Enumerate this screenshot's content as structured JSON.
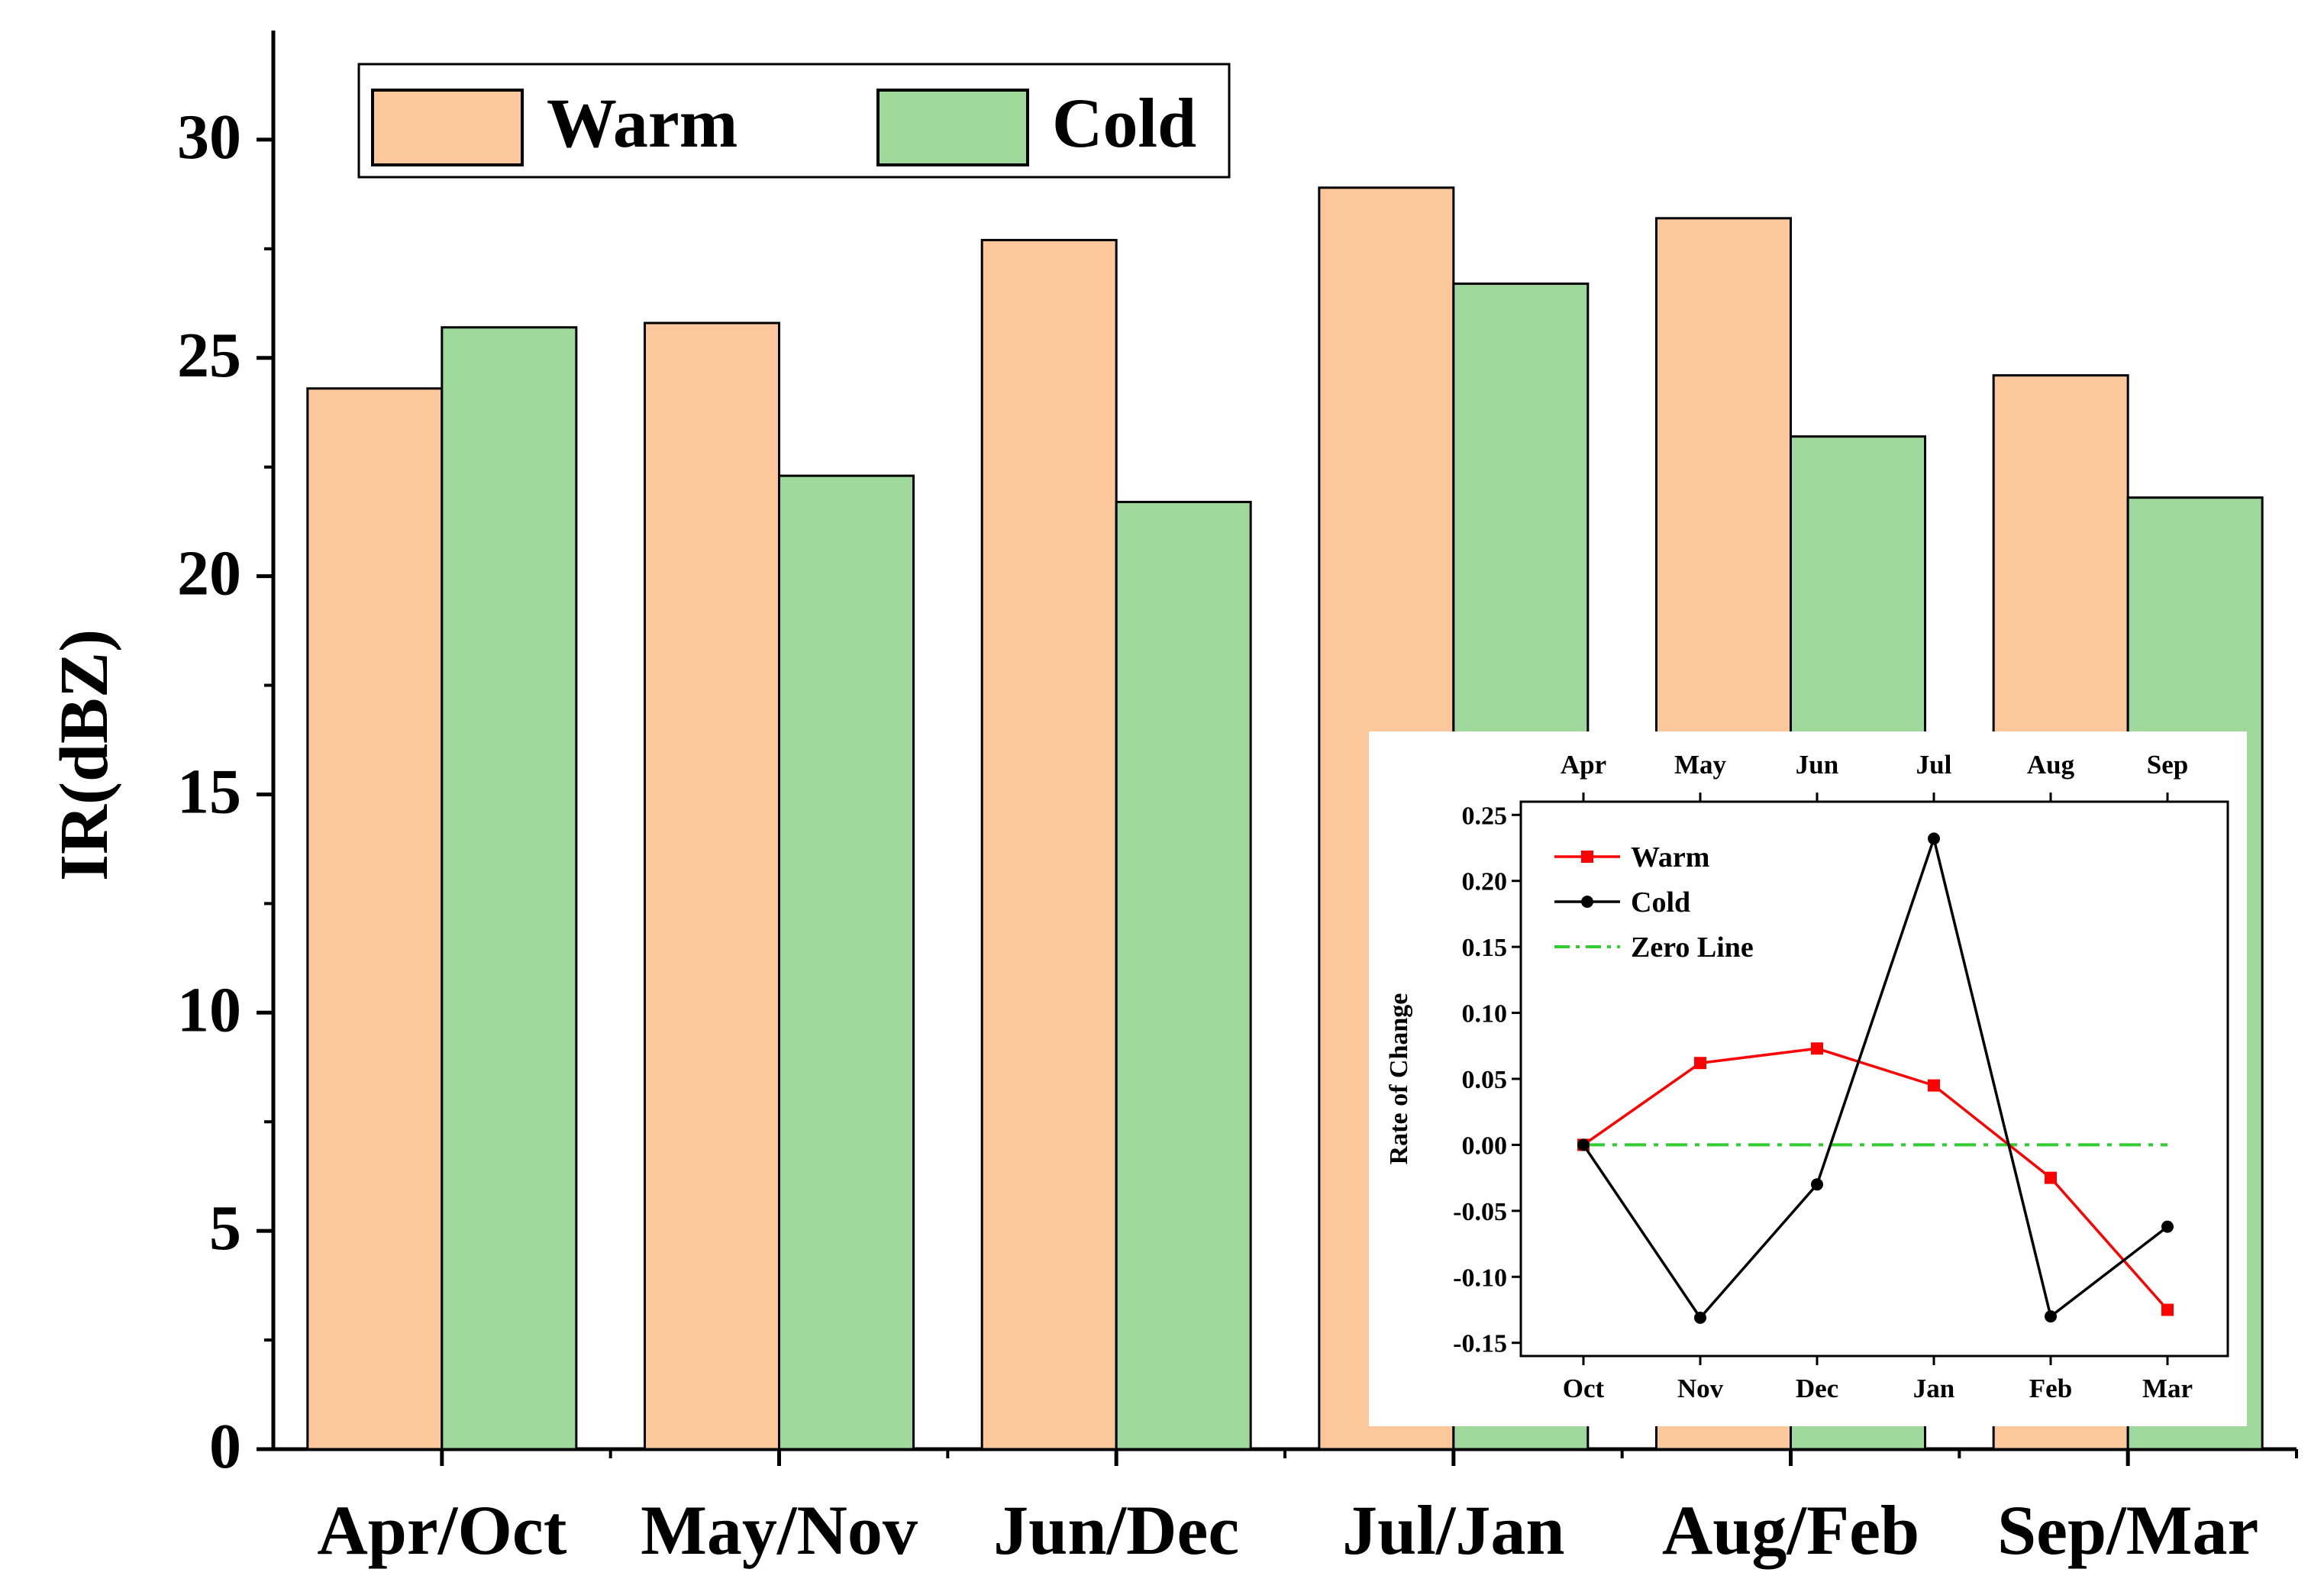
{
  "chart_data": [
    {
      "type": "bar",
      "title": "",
      "xlabel": "",
      "ylabel": "IR(dBZ)",
      "categories": [
        "Apr/Oct",
        "May/Nov",
        "Jun/Dec",
        "Jul/Jan",
        "Aug/Feb",
        "Sep/Mar"
      ],
      "series": [
        {
          "name": "Warm",
          "color": "#fcc89b",
          "values": [
            24.3,
            25.8,
            27.7,
            28.9,
            28.2,
            24.6
          ]
        },
        {
          "name": "Cold",
          "color": "#9ed99b",
          "values": [
            25.7,
            22.3,
            21.7,
            26.7,
            23.2,
            21.8
          ]
        }
      ],
      "ylim": [
        0,
        32.5
      ],
      "yticks": [
        0,
        5,
        10,
        15,
        20,
        25,
        30
      ],
      "legend": "top-left"
    },
    {
      "type": "line",
      "title": "",
      "xlabel": "",
      "ylabel": "Rate of Change",
      "categories": [
        "Oct",
        "Nov",
        "Dec",
        "Jan",
        "Feb",
        "Mar"
      ],
      "top_categories": [
        "Apr",
        "May",
        "Jun",
        "Jul",
        "Aug",
        "Sep"
      ],
      "series": [
        {
          "name": "Warm",
          "color": "#ff0000",
          "marker": "square",
          "values": [
            0.0,
            0.062,
            0.073,
            0.045,
            -0.025,
            -0.125
          ]
        },
        {
          "name": "Cold",
          "color": "#000000",
          "marker": "circle",
          "values": [
            0.0,
            -0.131,
            -0.03,
            0.232,
            -0.13,
            -0.062
          ]
        },
        {
          "name": "Zero Line",
          "color": "#33cc33",
          "style": "dash-dot",
          "values": [
            0,
            0,
            0,
            0,
            0,
            0
          ]
        }
      ],
      "ylim": [
        -0.16,
        0.26
      ],
      "yticks": [
        -0.15,
        -0.1,
        -0.05,
        0.0,
        0.05,
        0.1,
        0.15,
        0.2,
        0.25
      ],
      "ytick_labels": [
        "-0.15",
        "-0.10",
        "-0.05",
        "0.00",
        "0.05",
        "0.10",
        "0.15",
        "0.20",
        "0.25"
      ],
      "legend": "top-left"
    }
  ]
}
